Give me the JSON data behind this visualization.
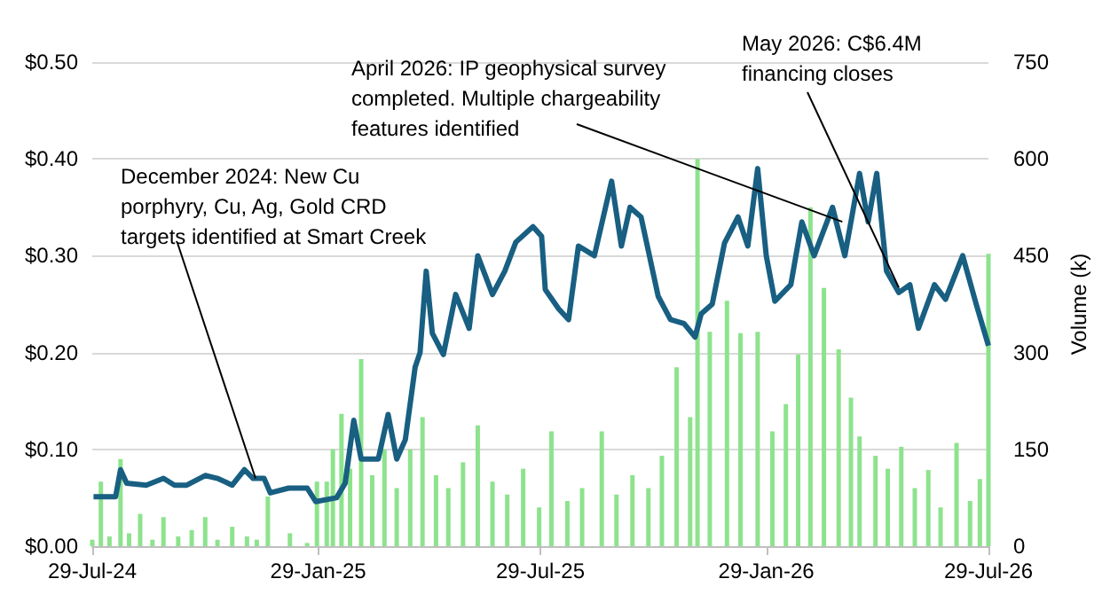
{
  "chart_data": {
    "type": "line",
    "y2label": "Volume (k)",
    "grid": "y",
    "xlim": [
      "2024-07-29",
      "2026-07-29"
    ],
    "xticks": [
      {
        "value": "2024-07-29",
        "label": "29-Jul-24"
      },
      {
        "value": "2025-01-29",
        "label": "29-Jan-25"
      },
      {
        "value": "2025-07-29",
        "label": "29-Jul-25"
      },
      {
        "value": "2026-01-29",
        "label": "29-Jan-26"
      },
      {
        "value": "2026-07-29",
        "label": "29-Jul-26"
      }
    ],
    "ylim": [
      0,
      0.5
    ],
    "yticks": [
      {
        "value": 0,
        "label": "$0.00"
      },
      {
        "value": 0.1,
        "label": "$0.10"
      },
      {
        "value": 0.2,
        "label": "$0.20"
      },
      {
        "value": 0.3,
        "label": "$0.30"
      },
      {
        "value": 0.4,
        "label": "$0.40"
      },
      {
        "value": 0.5,
        "label": "$0.50"
      }
    ],
    "y2lim": [
      0,
      750
    ],
    "y2ticks": [
      0,
      150,
      300,
      450,
      600,
      750
    ],
    "series": [
      {
        "type": "bar",
        "axis": "y2",
        "color": "#8de38d",
        "x": [
          "2024-07-29",
          "2024-08-05",
          "2024-08-12",
          "2024-08-21",
          "2024-08-28",
          "2024-09-06",
          "2024-09-16",
          "2024-09-25",
          "2024-10-07",
          "2024-10-18",
          "2024-10-29",
          "2024-11-08",
          "2024-11-20",
          "2024-12-02",
          "2024-12-10",
          "2024-12-19",
          "2025-01-06",
          "2025-01-20",
          "2025-01-28",
          "2025-02-05",
          "2025-02-10",
          "2025-02-17",
          "2025-02-24",
          "2025-03-05",
          "2025-03-14",
          "2025-03-24",
          "2025-04-03",
          "2025-04-14",
          "2025-04-24",
          "2025-05-05",
          "2025-05-15",
          "2025-05-27",
          "2025-06-08",
          "2025-06-20",
          "2025-07-02",
          "2025-07-15",
          "2025-07-28",
          "2025-08-07",
          "2025-08-20",
          "2025-09-01",
          "2025-09-17",
          "2025-09-29",
          "2025-10-12",
          "2025-10-25",
          "2025-11-05",
          "2025-11-17",
          "2025-11-28",
          "2025-12-04",
          "2025-12-14",
          "2025-12-28",
          "2026-01-08",
          "2026-01-22",
          "2026-02-03",
          "2026-02-14",
          "2026-02-24",
          "2026-03-06",
          "2026-03-17",
          "2026-03-29",
          "2026-04-08",
          "2026-04-15",
          "2026-04-28",
          "2026-05-08",
          "2026-05-19",
          "2026-05-30",
          "2026-06-10",
          "2026-06-20",
          "2026-07-03",
          "2026-07-14",
          "2026-07-22",
          "2026-07-29"
        ],
        "values": [
          10,
          100,
          15,
          135,
          20,
          50,
          10,
          45,
          15,
          25,
          45,
          10,
          30,
          15,
          10,
          77,
          20,
          5,
          100,
          100,
          150,
          205,
          120,
          290,
          110,
          150,
          90,
          150,
          200,
          110,
          90,
          130,
          187,
          100,
          80,
          120,
          60,
          178,
          70,
          90,
          178,
          80,
          110,
          90,
          140,
          277,
          200,
          600,
          332,
          380,
          330,
          332,
          178,
          220,
          297,
          525,
          400,
          305,
          230,
          170,
          140,
          120,
          154,
          90,
          118,
          60,
          160,
          70,
          104,
          453
        ]
      },
      {
        "color": "#185f82",
        "x": [
          "2024-07-30",
          "2024-08-17",
          "2024-08-21",
          "2024-08-26",
          "2024-09-11",
          "2024-09-25",
          "2024-10-04",
          "2024-10-14",
          "2024-10-29",
          "2024-11-08",
          "2024-11-20",
          "2024-11-30",
          "2024-12-07",
          "2024-12-16",
          "2024-12-21",
          "2025-01-05",
          "2025-01-20",
          "2025-01-27",
          "2025-02-13",
          "2025-02-20",
          "2025-02-27",
          "2025-03-05",
          "2025-03-19",
          "2025-03-27",
          "2025-04-03",
          "2025-04-10",
          "2025-04-18",
          "2025-04-22",
          "2025-04-27",
          "2025-05-02",
          "2025-05-11",
          "2025-05-21",
          "2025-06-01",
          "2025-06-08",
          "2025-06-20",
          "2025-06-30",
          "2025-07-09",
          "2025-07-23",
          "2025-07-30",
          "2025-08-02",
          "2025-08-13",
          "2025-08-21",
          "2025-08-29",
          "2025-09-11",
          "2025-09-25",
          "2025-10-03",
          "2025-10-10",
          "2025-10-19",
          "2025-11-02",
          "2025-11-12",
          "2025-11-23",
          "2025-12-02",
          "2025-12-07",
          "2025-12-16",
          "2025-12-26",
          "2026-01-06",
          "2026-01-14",
          "2026-01-22",
          "2026-01-29",
          "2026-02-05",
          "2026-02-18",
          "2026-02-27",
          "2026-03-09",
          "2026-03-24",
          "2026-04-03",
          "2026-04-08",
          "2026-04-15",
          "2026-04-22",
          "2026-04-29",
          "2026-05-07",
          "2026-05-17",
          "2026-05-26",
          "2026-06-02",
          "2026-06-15",
          "2026-06-24",
          "2026-07-08",
          "2026-07-19",
          "2026-07-29"
        ],
        "values": [
          0.051,
          0.051,
          0.079,
          0.065,
          0.063,
          0.07,
          0.063,
          0.063,
          0.073,
          0.07,
          0.063,
          0.079,
          0.07,
          0.07,
          0.055,
          0.06,
          0.06,
          0.046,
          0.05,
          0.065,
          0.13,
          0.09,
          0.09,
          0.136,
          0.09,
          0.11,
          0.185,
          0.2,
          0.284,
          0.22,
          0.198,
          0.26,
          0.225,
          0.3,
          0.26,
          0.284,
          0.314,
          0.33,
          0.32,
          0.265,
          0.245,
          0.234,
          0.31,
          0.3,
          0.377,
          0.31,
          0.35,
          0.34,
          0.258,
          0.234,
          0.23,
          0.216,
          0.24,
          0.25,
          0.313,
          0.34,
          0.31,
          0.39,
          0.3,
          0.253,
          0.27,
          0.335,
          0.3,
          0.35,
          0.3,
          0.335,
          0.385,
          0.335,
          0.385,
          0.284,
          0.262,
          0.27,
          0.225,
          0.27,
          0.255,
          0.3,
          0.25,
          0.207
        ]
      }
    ],
    "annotations": [
      {
        "text": "December 2024: New Cu porphyry, Cu, Ag, Gold CRD targets identified at Smart Creek",
        "x": "2024-12-09",
        "y": 0.07
      },
      {
        "text": "April 2026: IP geophysical survey completed. Multiple chargeability features identified",
        "x": "2026-04-01",
        "y": 0.335
      },
      {
        "text": "May 2026: C$6.4M financing closes",
        "x": "2026-05-17",
        "y": 0.267
      }
    ]
  }
}
